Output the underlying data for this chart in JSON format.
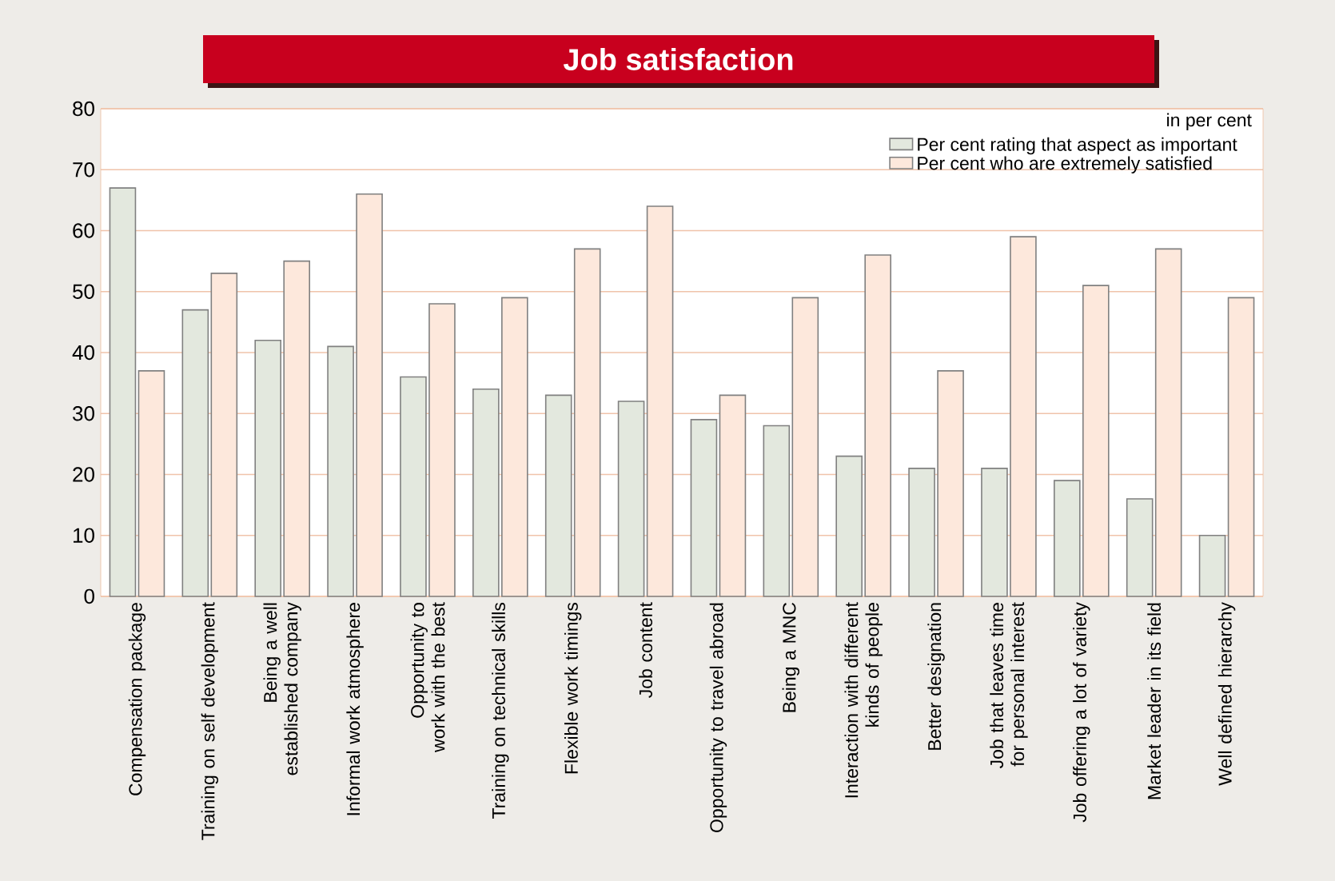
{
  "chart_data": {
    "type": "bar",
    "title": "Job satisfaction",
    "categories": [
      "Compensation package",
      "Training on self development",
      "Being a well established company",
      "Informal work atmosphere",
      "Opportunity to work with the best",
      "Training on technical skills",
      "Flexible work timings",
      "Job content",
      "Opportunity to travel abroad",
      "Being a MNC",
      "Interaction with different kinds of people",
      "Better designation",
      "Job that leaves time for personal interest",
      "Job offering a lot of variety",
      "Market leader in its field",
      "Well defined hierarchy"
    ],
    "series": [
      {
        "name": "Per cent rating that aspect as important",
        "color": "#e3e8de",
        "values": [
          67,
          47,
          42,
          41,
          36,
          34,
          33,
          32,
          29,
          28,
          23,
          21,
          21,
          19,
          16,
          10
        ]
      },
      {
        "name": "Per cent who are extremely satisfied",
        "color": "#fde8dc",
        "values": [
          37,
          53,
          55,
          66,
          48,
          49,
          57,
          64,
          33,
          49,
          56,
          37,
          59,
          51,
          57,
          49
        ]
      }
    ],
    "ylim": [
      0,
      80
    ],
    "yticks": [
      0,
      10,
      20,
      30,
      40,
      50,
      60,
      70,
      80
    ],
    "grid": "y",
    "legend": "top right",
    "annotations": [
      "in per cent"
    ]
  }
}
